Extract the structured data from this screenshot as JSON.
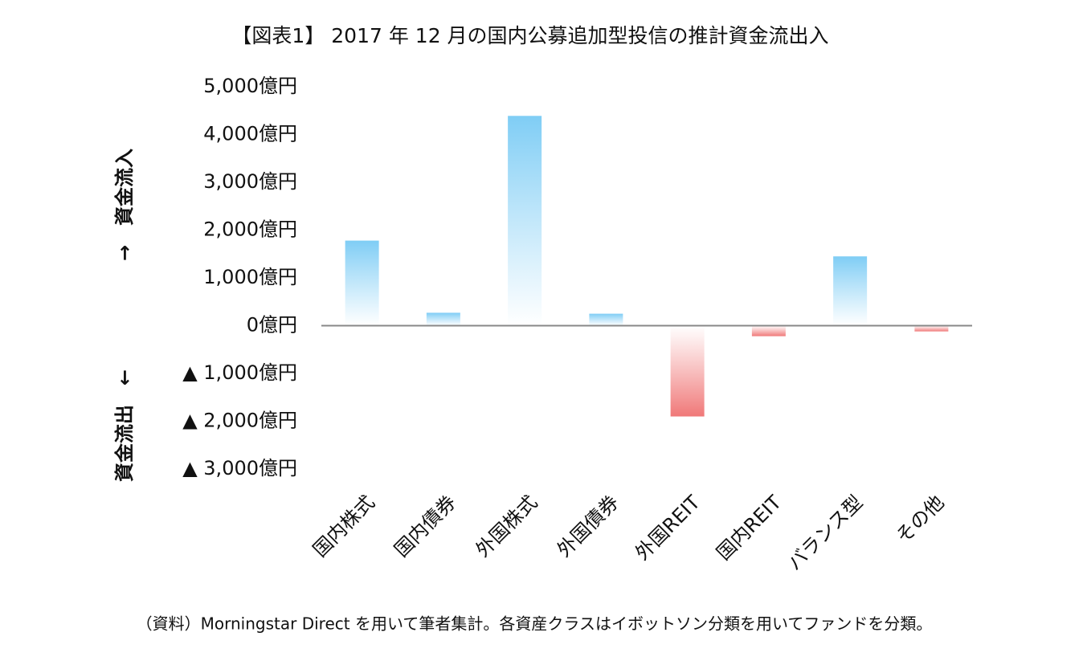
{
  "chart_data": {
    "type": "bar",
    "title": "【図表1】 2017 年 12 月の国内公募追加型投信の推計資金流出入",
    "annotations": [
      "→　資金流入",
      "資金流出　←"
    ],
    "note": "（資料）Morningstar Direct を用いて筆者集計。各資産クラスはイボットソン分類を用いてファンドを分類。",
    "categories": [
      "国内株式",
      "国内債券",
      "外国株式",
      "外国債券",
      "外国REIT",
      "国内REIT",
      "バランス型",
      "その他"
    ],
    "values": [
      1780,
      270,
      4390,
      250,
      -1900,
      -220,
      1450,
      -120
    ],
    "positive_color": "#7fcdf5",
    "negative_color": "#f07878",
    "ylim": [
      -3000,
      5000
    ],
    "yticks": [
      {
        "value": 5000,
        "label": "5,000億円"
      },
      {
        "value": 4000,
        "label": "4,000億円"
      },
      {
        "value": 3000,
        "label": "3,000億円"
      },
      {
        "value": 2000,
        "label": "2,000億円"
      },
      {
        "value": 1000,
        "label": "1,000億円"
      },
      {
        "value": 0,
        "label": "0億円"
      },
      {
        "value": -1000,
        "label": "▲ 1,000億円"
      },
      {
        "value": -2000,
        "label": "▲ 2,000億円"
      },
      {
        "value": -3000,
        "label": "▲ 3,000億円"
      }
    ],
    "grid": false
  }
}
